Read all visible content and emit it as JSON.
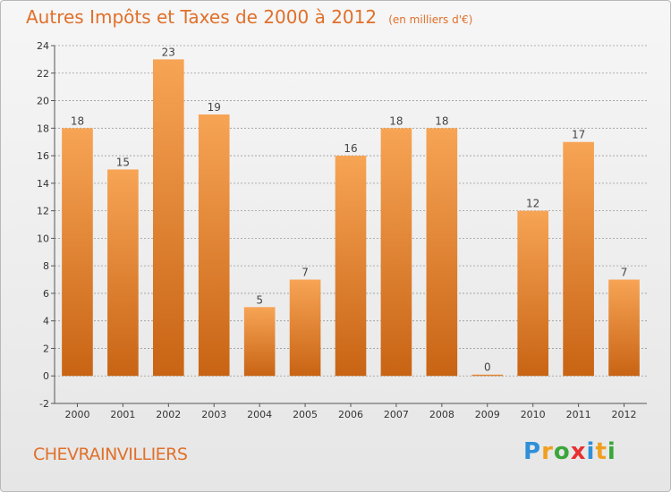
{
  "header": {
    "title": "Autres Impôts et Taxes de 2000 à 2012",
    "unit": "(en milliers d'€)"
  },
  "footer": {
    "place": "CHEVRAINVILLIERS",
    "brand": "Proxiti",
    "brand_letters": [
      {
        "ch": "P",
        "color": "#2f8fd8"
      },
      {
        "ch": "r",
        "color": "#f0a020"
      },
      {
        "ch": "o",
        "color": "#3aa63a"
      },
      {
        "ch": "x",
        "color": "#e83030"
      },
      {
        "ch": "i",
        "color": "#2f8fd8"
      },
      {
        "ch": "t",
        "color": "#f0a020"
      },
      {
        "ch": "i",
        "color": "#3aa63a"
      }
    ]
  },
  "colors": {
    "bar_top": "#f7a455",
    "bar_bottom": "#c86414",
    "grid": "#9a9a9a",
    "axis_text": "#333333",
    "title": "#e0702a"
  },
  "chart_data": {
    "type": "bar",
    "categories": [
      "2000",
      "2001",
      "2002",
      "2003",
      "2004",
      "2005",
      "2006",
      "2007",
      "2008",
      "2009",
      "2010",
      "2011",
      "2012"
    ],
    "values": [
      18,
      15,
      23,
      19,
      5,
      7,
      16,
      18,
      18,
      0,
      12,
      17,
      7
    ],
    "data_labels": [
      "18",
      "15",
      "23",
      "19",
      "5",
      "7",
      "16",
      "18",
      "18",
      "0",
      "12",
      "17",
      "7"
    ],
    "title": "Autres Impôts et Taxes de 2000 à 2012",
    "subtitle": "(en milliers d'€)",
    "xlabel": "",
    "ylabel": "",
    "ylim": [
      -2,
      24
    ],
    "yticks": [
      -2,
      0,
      2,
      4,
      6,
      8,
      10,
      12,
      14,
      16,
      18,
      20,
      22,
      24
    ],
    "grid": true,
    "legend": "none"
  }
}
